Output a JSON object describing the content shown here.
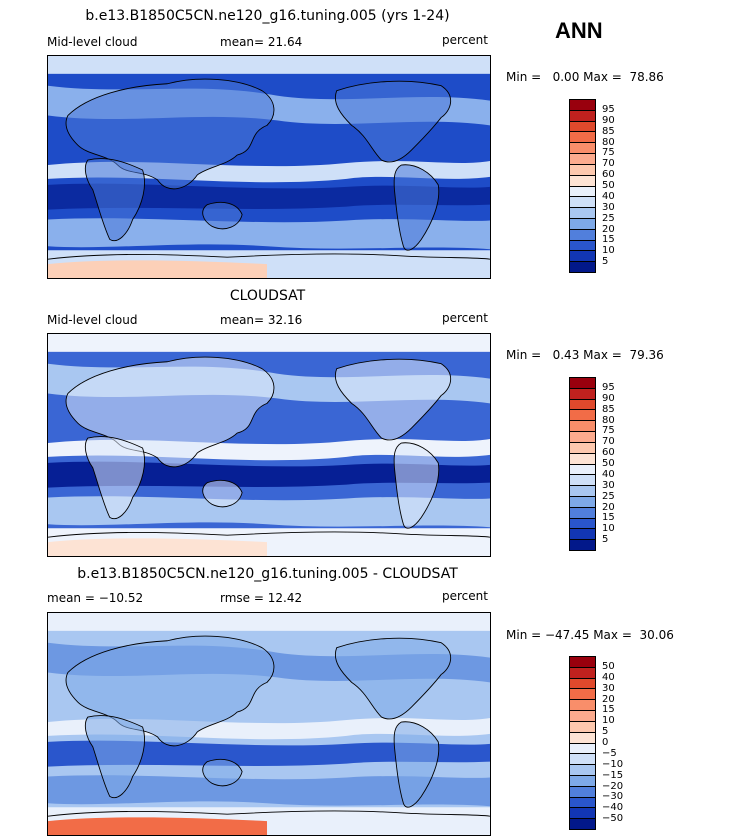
{
  "season": "ANN",
  "panels": [
    {
      "title": "b.e13.B1850C5CN.ne120_g16.tuning.005 (yrs 1-24)",
      "left_label": "Mid-level cloud",
      "mid_label": "mean=  21.64",
      "right_label": "percent",
      "minmax": "Min =   0.00 Max =  78.86",
      "colorbar": {
        "labels": [
          "95",
          "90",
          "85",
          "80",
          "75",
          "70",
          "60",
          "50",
          "40",
          "30",
          "25",
          "20",
          "15",
          "10",
          "5"
        ],
        "colors": [
          "#99000d",
          "#c0211e",
          "#e0492c",
          "#f26c47",
          "#f98e6a",
          "#fcab8e",
          "#fdc8ae",
          "#fde3d4",
          "#e9f0fb",
          "#cfe0f8",
          "#a9c7f1",
          "#7ea9e8",
          "#517fdc",
          "#2a56cc",
          "#1236b4",
          "#02188a"
        ]
      },
      "map": {
        "land_cloud": "#4a78d8",
        "ocean_base": "#1e4cc8",
        "band_light": "#cfe0f8",
        "band_mid": "#8ab0ec",
        "polar": "#fcd0b8",
        "trop_dark": "#0b2aa0"
      }
    },
    {
      "title": "CLOUDSAT",
      "left_label": "Mid-level cloud",
      "mid_label": "mean=  32.16",
      "right_label": "percent",
      "minmax": "Min =   0.43 Max =  79.36",
      "colorbar": {
        "labels": [
          "95",
          "90",
          "85",
          "80",
          "75",
          "70",
          "60",
          "50",
          "40",
          "30",
          "25",
          "20",
          "15",
          "10",
          "5"
        ],
        "colors": [
          "#99000d",
          "#c0211e",
          "#e0492c",
          "#f26c47",
          "#f98e6a",
          "#fcab8e",
          "#fdc8ae",
          "#fde3d4",
          "#e9f0fb",
          "#cfe0f8",
          "#a9c7f1",
          "#7ea9e8",
          "#517fdc",
          "#2a56cc",
          "#1236b4",
          "#02188a"
        ]
      },
      "map": {
        "land_cloud": "#dde8fa",
        "ocean_base": "#3a66d4",
        "band_light": "#eef3fc",
        "band_mid": "#a9c7f1",
        "polar": "#fde3d4",
        "trop_dark": "#061f95"
      }
    },
    {
      "title": "b.e13.B1850C5CN.ne120_g16.tuning.005 - CLOUDSAT",
      "left_label": "mean = −10.52",
      "mid_label": "rmse =  12.42",
      "right_label": "percent",
      "minmax": "Min = −47.45 Max =  30.06",
      "colorbar": {
        "labels": [
          "50",
          "40",
          "30",
          "20",
          "15",
          "10",
          "5",
          "0",
          "−5",
          "−10",
          "−15",
          "−20",
          "−30",
          "−40",
          "−50"
        ],
        "colors": [
          "#99000d",
          "#c0211e",
          "#e0492c",
          "#f26c47",
          "#f98e6a",
          "#fcab8e",
          "#fdc8ae",
          "#fde3d4",
          "#e9f0fb",
          "#cfe0f8",
          "#a9c7f1",
          "#7ea9e8",
          "#517fdc",
          "#2a56cc",
          "#1236b4",
          "#02188a"
        ]
      },
      "map": {
        "land_cloud": "#7ea9e8",
        "ocean_base": "#a9c7f1",
        "band_light": "#e9f0fb",
        "band_mid": "#6d98e2",
        "polar": "#f26c47",
        "trop_dark": "#2a56cc"
      }
    }
  ]
}
